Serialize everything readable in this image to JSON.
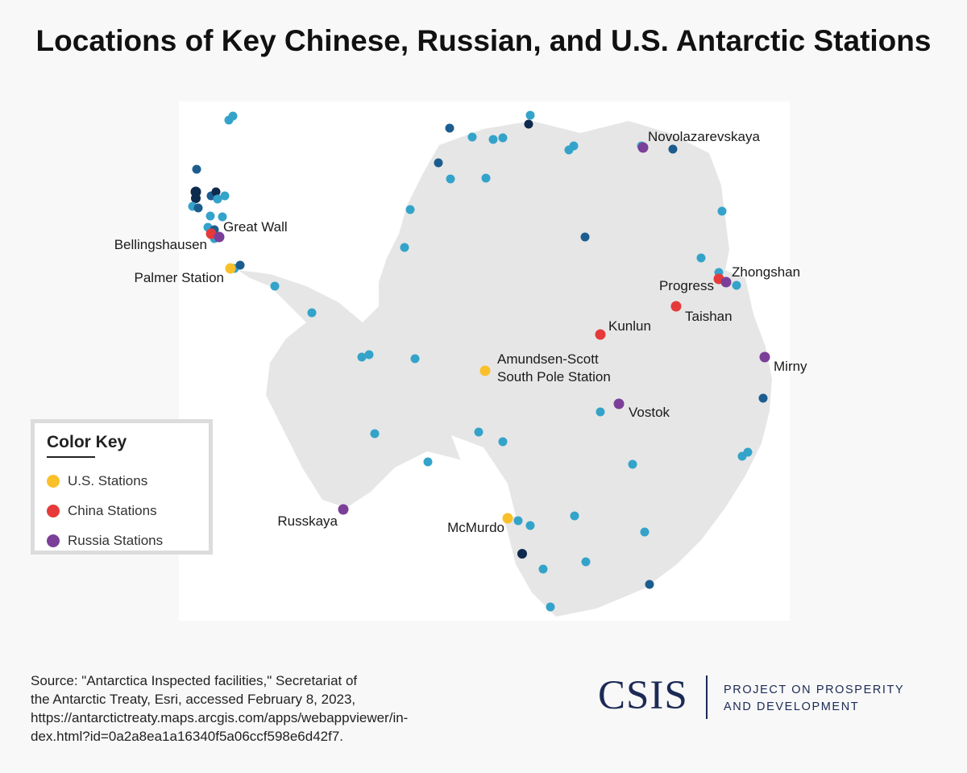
{
  "title": "Locations of Key Chinese, Russian, and U.S. Antarctic Stations",
  "colors": {
    "us": "#f9c02a",
    "china": "#e63a3a",
    "russia": "#7b3f99",
    "other": "#34a3ca",
    "other_dark": "#1c5d8f",
    "other_darkest": "#0e2b4e",
    "land": "#e6e6e6"
  },
  "legend": {
    "title": "Color Key",
    "items": [
      {
        "label": "U.S. Stations",
        "color": "#f9c02a"
      },
      {
        "label": "China Stations",
        "color": "#e63a3a"
      },
      {
        "label": "Russia Stations",
        "color": "#7b3f99"
      }
    ]
  },
  "stations": {
    "palmer": "Palmer Station",
    "amundsen_line1": "Amundsen-Scott",
    "amundsen_line2": "South Pole Station",
    "mcmurdo": "McMurdo",
    "great_wall": "Great Wall",
    "zhongshan": "Zhongshan",
    "kunlun": "Kunlun",
    "taishan": "Taishan",
    "bellingshausen": "Bellingshausen",
    "novolazarevskaya": "Novolazarevskaya",
    "progress": "Progress",
    "mirny": "Mirny",
    "vostok": "Vostok",
    "russkaya": "Russkaya"
  },
  "source": {
    "line1": "Source: \"Antarctica Inspected facilities,\" Secretariat of",
    "line2": "the Antarctic Treaty, Esri, accessed February 8, 2023,",
    "line3": "https://antarctictreaty.maps.arcgis.com/apps/webappviewer/in-",
    "line4": "dex.html?id=0a2a8ea1a16340f5a06ccf598e6d42f7."
  },
  "logo": {
    "name": "CSIS",
    "sub_line1": "PROJECT ON PROSPERITY",
    "sub_line2": "AND DEVELOPMENT"
  }
}
